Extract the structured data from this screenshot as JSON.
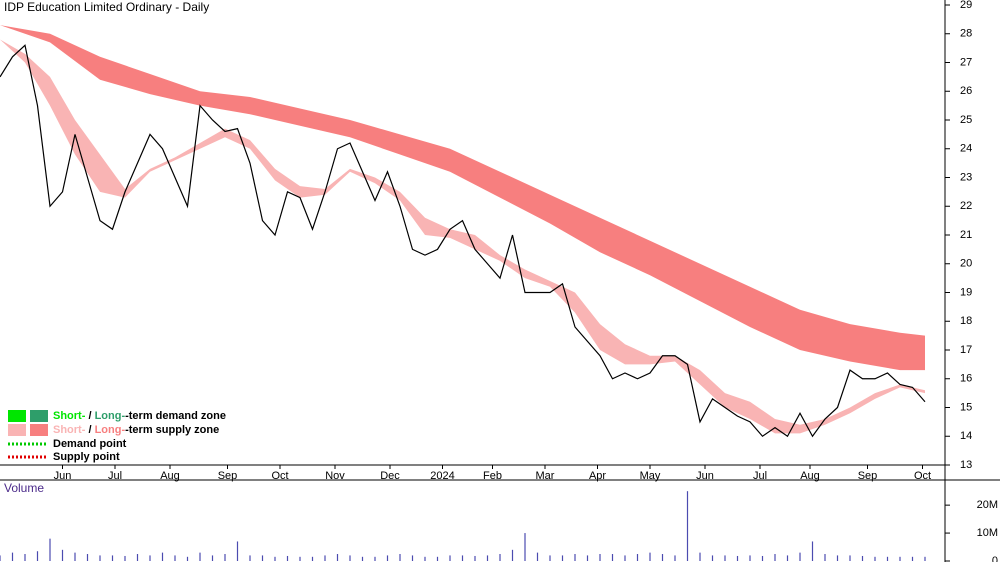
{
  "chart_data": {
    "type": "price-bands",
    "title": "IDP Education Limited Ordinary - Daily",
    "ylim": [
      13,
      29
    ],
    "yticks": [
      13,
      14,
      15,
      16,
      17,
      18,
      19,
      20,
      21,
      22,
      23,
      24,
      25,
      26,
      27,
      28,
      29
    ],
    "xlim": [
      0,
      378
    ],
    "xticks": [
      {
        "value": 25,
        "label": "Jun"
      },
      {
        "value": 46,
        "label": "Jul"
      },
      {
        "value": 68,
        "label": "Aug"
      },
      {
        "value": 91,
        "label": "Sep"
      },
      {
        "value": 112,
        "label": "Oct"
      },
      {
        "value": 134,
        "label": "Nov"
      },
      {
        "value": 156,
        "label": "Dec"
      },
      {
        "value": 177,
        "label": "2024"
      },
      {
        "value": 197,
        "label": "Feb"
      },
      {
        "value": 218,
        "label": "Mar"
      },
      {
        "value": 239,
        "label": "Apr"
      },
      {
        "value": 260,
        "label": "May"
      },
      {
        "value": 282,
        "label": "Jun"
      },
      {
        "value": 304,
        "label": "Jul"
      },
      {
        "value": 324,
        "label": "Aug"
      },
      {
        "value": 347,
        "label": "Sep"
      },
      {
        "value": 369,
        "label": "Oct"
      }
    ],
    "price": {
      "color": "#000000",
      "x": [
        0,
        5,
        10,
        15,
        20,
        25,
        30,
        35,
        40,
        45,
        50,
        55,
        60,
        65,
        70,
        75,
        80,
        85,
        90,
        95,
        100,
        105,
        110,
        115,
        120,
        125,
        130,
        135,
        140,
        145,
        150,
        155,
        160,
        165,
        170,
        175,
        180,
        185,
        190,
        195,
        200,
        205,
        210,
        215,
        220,
        225,
        230,
        235,
        240,
        245,
        250,
        255,
        260,
        265,
        270,
        275,
        280,
        285,
        290,
        295,
        300,
        305,
        310,
        315,
        320,
        325,
        330,
        335,
        340,
        345,
        350,
        355,
        360,
        365,
        370
      ],
      "close": [
        26.5,
        27.2,
        27.6,
        25.5,
        22.0,
        22.5,
        24.5,
        23.0,
        21.5,
        21.2,
        22.5,
        23.5,
        24.5,
        24.0,
        23.0,
        22.0,
        25.5,
        25.0,
        24.6,
        24.7,
        23.5,
        21.5,
        21.0,
        22.5,
        22.3,
        21.2,
        22.5,
        24.0,
        24.2,
        23.2,
        22.2,
        23.2,
        22.0,
        20.5,
        20.3,
        20.5,
        21.2,
        21.5,
        20.5,
        20.0,
        19.5,
        21.0,
        19.0,
        19.0,
        19.0,
        19.3,
        17.8,
        17.3,
        16.8,
        16.0,
        16.2,
        16.0,
        16.2,
        16.8,
        16.8,
        16.5,
        14.5,
        15.3,
        15.0,
        14.7,
        14.5,
        14.0,
        14.3,
        14.0,
        14.8,
        14.0,
        14.6,
        15.0,
        16.3,
        16.0,
        16.0,
        16.2,
        15.8,
        15.7,
        15.2
      ]
    },
    "long_term_supply": {
      "color": "#f77f7f",
      "x": [
        0,
        20,
        40,
        60,
        80,
        100,
        120,
        140,
        160,
        180,
        200,
        220,
        240,
        260,
        280,
        300,
        320,
        340,
        360,
        370
      ],
      "upper": [
        28.3,
        28.0,
        27.2,
        26.6,
        26.0,
        25.8,
        25.4,
        25.0,
        24.5,
        24.0,
        23.2,
        22.4,
        21.6,
        20.8,
        20.0,
        19.2,
        18.4,
        17.9,
        17.6,
        17.5
      ],
      "lower": [
        28.3,
        27.7,
        26.4,
        25.9,
        25.5,
        25.2,
        24.8,
        24.4,
        23.8,
        23.2,
        22.3,
        21.4,
        20.4,
        19.6,
        18.7,
        17.8,
        17.0,
        16.6,
        16.3,
        16.3
      ]
    },
    "short_term_supply": {
      "color": "#f9b4b4",
      "x": [
        0,
        10,
        20,
        30,
        40,
        50,
        60,
        70,
        80,
        90,
        100,
        110,
        120,
        130,
        140,
        150,
        160,
        170,
        180,
        190,
        200,
        210,
        220,
        230,
        240,
        250,
        260,
        270,
        280,
        290,
        300,
        310,
        320,
        330,
        340,
        350,
        360,
        370
      ],
      "upper": [
        27.8,
        27.3,
        26.5,
        25.0,
        23.8,
        22.6,
        23.3,
        23.7,
        24.2,
        24.7,
        24.3,
        23.3,
        22.7,
        22.6,
        23.3,
        23.0,
        22.5,
        21.6,
        21.2,
        21.0,
        20.3,
        19.8,
        19.4,
        19.0,
        17.9,
        17.2,
        16.8,
        16.8,
        16.3,
        15.5,
        15.2,
        14.6,
        14.4,
        14.6,
        15.0,
        15.5,
        15.8,
        15.6
      ],
      "lower": [
        27.8,
        27.0,
        25.5,
        23.8,
        22.5,
        22.3,
        23.2,
        23.6,
        24.0,
        24.4,
        24.0,
        22.9,
        22.3,
        22.4,
        23.2,
        22.8,
        22.2,
        21.0,
        20.9,
        20.5,
        20.1,
        19.5,
        19.2,
        18.3,
        17.0,
        16.5,
        16.5,
        16.6,
        15.8,
        15.0,
        14.6,
        14.1,
        14.1,
        14.4,
        14.8,
        15.3,
        15.7,
        15.5
      ]
    },
    "legend": [
      {
        "short": "Short-",
        "sep": " / ",
        "long": "Long-",
        "rest": "-term demand zone",
        "short_color": "#00e600",
        "long_color": "#2e9e6a"
      },
      {
        "short": "Short-",
        "sep": " / ",
        "long": "Long-",
        "rest": "-term supply zone",
        "short_color": "#f9b4b4",
        "long_color": "#f77f7f"
      }
    ],
    "points": [
      {
        "label": "Demand point",
        "color": "#00c800"
      },
      {
        "label": "Supply point",
        "color": "#e00000"
      }
    ],
    "volume": {
      "label": "Volume",
      "color": "#4b4bb0",
      "ylim": [
        0,
        29000000
      ],
      "yticks": [
        0,
        {
          "value": 10000000,
          "label": "10M"
        },
        {
          "value": 20000000,
          "label": "20M"
        }
      ],
      "values": [
        2000000,
        3000000,
        2500000,
        3500000,
        8000000,
        4000000,
        3000000,
        2500000,
        2000000,
        2000000,
        1800000,
        2500000,
        2000000,
        3000000,
        2000000,
        1500000,
        3000000,
        2000000,
        2500000,
        7000000,
        2000000,
        2000000,
        1500000,
        1800000,
        1500000,
        1500000,
        2000000,
        2500000,
        2000000,
        1500000,
        1500000,
        2000000,
        2500000,
        2000000,
        1500000,
        1500000,
        2000000,
        2000000,
        1800000,
        2000000,
        2500000,
        4000000,
        10000000,
        3000000,
        2000000,
        2000000,
        2500000,
        2000000,
        2500000,
        2500000,
        2000000,
        2500000,
        3000000,
        2500000,
        2000000,
        25000000,
        3000000,
        2000000,
        2000000,
        1800000,
        2000000,
        1800000,
        2500000,
        2000000,
        3000000,
        7000000,
        2500000,
        2000000,
        2000000,
        1800000,
        1500000,
        1500000,
        1500000,
        1500000,
        1500000
      ]
    }
  }
}
